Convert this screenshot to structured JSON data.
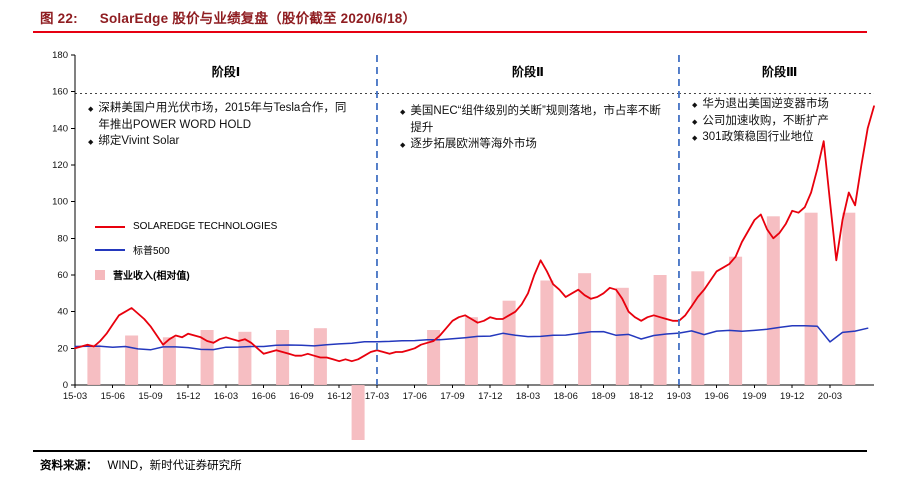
{
  "header": {
    "figure_label": "图 22:",
    "title": "SolarEdge 股价与业绩复盘（股价截至 2020/6/18）"
  },
  "footer": {
    "source_label": "资料来源：",
    "source_text": "WIND，新时代证券研究所"
  },
  "colors": {
    "title_red": "#8f1d21",
    "rule_red": "#e60012",
    "solaredge_red": "#e8000d",
    "sp500_blue": "#2438bd",
    "revenue_pink": "#f5b9bd",
    "divider_blue": "#4472c4"
  },
  "legend": {
    "items": [
      {
        "label": "SOLAREDGE TECHNOLOGIES",
        "type": "line"
      },
      {
        "label": "标普500",
        "type": "line"
      },
      {
        "label": "营业收入(相对值)",
        "type": "bar"
      }
    ]
  },
  "phases": [
    {
      "label": "阶段Ⅰ",
      "bullets": [
        "深耕美国户用光伏市场，2015年与Tesla合作，同年推出POWER WORD HOLD",
        "绑定Vivint Solar"
      ]
    },
    {
      "label": "阶段Ⅱ",
      "bullets": [
        "美国NEC“组件级别的关断”规则落地，市占率不断提升",
        "逐步拓展欧洲等海外市场"
      ]
    },
    {
      "label": "阶段Ⅲ",
      "bullets": [
        "华为退出美国逆变器市场",
        "公司加速收购，不断扩产",
        "301政策稳固行业地位"
      ]
    }
  ],
  "chart_data": {
    "type": "line+bar",
    "title": "SolarEdge 股价与业绩复盘",
    "ylim": [
      0,
      180
    ],
    "yticks": [
      0,
      20,
      40,
      60,
      80,
      100,
      120,
      140,
      160,
      180
    ],
    "x_categories": [
      "15-03",
      "15-06",
      "15-09",
      "15-12",
      "16-03",
      "16-06",
      "16-09",
      "16-12",
      "17-03",
      "17-06",
      "17-09",
      "17-12",
      "18-03",
      "18-06",
      "18-09",
      "18-12",
      "19-03",
      "19-06",
      "19-09",
      "19-12",
      "20-03"
    ],
    "x_axis_note": "months indexed from 2015-03 (0) to 2020-06 (63.5)",
    "phase_dividers": [
      {
        "at": "17-03",
        "month": 24
      },
      {
        "at": "19-03",
        "month": 48
      }
    ],
    "phase_labels": [
      {
        "label": "阶段Ⅰ",
        "month": 12
      },
      {
        "label": "阶段Ⅱ",
        "month": 36
      },
      {
        "label": "阶段Ⅲ",
        "month": 56
      }
    ],
    "separator_value": 159,
    "separator_segments": [
      [
        0,
        24
      ],
      [
        24,
        48
      ],
      [
        48,
        63.5
      ]
    ],
    "series": [
      {
        "name": "SOLAREDGE TECHNOLOGIES",
        "type": "line",
        "color": "#e8000d",
        "width": 1.8,
        "x_start": 0,
        "x_step": 0.5,
        "values": [
          20,
          21,
          22,
          21,
          24,
          28,
          33,
          38,
          40,
          42,
          39,
          36,
          32,
          27,
          22,
          25,
          27,
          26,
          28,
          27,
          26,
          24,
          23,
          25,
          26,
          25,
          24,
          25,
          23,
          20,
          17,
          18,
          19,
          18,
          17,
          16,
          16,
          17,
          16,
          15,
          15,
          14,
          13,
          14,
          13,
          14,
          16,
          18,
          19,
          18,
          17,
          18,
          18,
          19,
          20,
          22,
          23,
          24,
          27,
          31,
          35,
          37,
          38,
          36,
          34,
          35,
          37,
          36,
          36,
          38,
          40,
          44,
          50,
          60,
          68,
          62,
          55,
          52,
          48,
          50,
          52,
          49,
          47,
          48,
          50,
          53,
          52,
          47,
          40,
          37,
          35,
          37,
          38,
          37,
          36,
          35,
          35,
          38,
          43,
          48,
          52,
          57,
          62,
          64,
          66,
          70,
          78,
          84,
          90,
          93,
          85,
          80,
          83,
          88,
          95,
          94,
          97,
          105,
          118,
          133,
          100,
          68,
          90,
          105,
          98,
          120,
          140,
          152
        ]
      },
      {
        "name": "标普500",
        "type": "line",
        "color": "#2438bd",
        "width": 1.5,
        "x_start": 0,
        "x_step": 1,
        "values": [
          21.0,
          21.1,
          21.1,
          20.6,
          21.0,
          19.7,
          19.2,
          20.8,
          20.8,
          20.4,
          19.4,
          19.3,
          20.6,
          20.7,
          21.0,
          21.0,
          21.7,
          21.8,
          21.7,
          21.3,
          22.0,
          22.4,
          22.8,
          23.6,
          23.6,
          23.8,
          24.1,
          24.2,
          24.7,
          24.7,
          25.2,
          25.8,
          26.5,
          26.7,
          28.2,
          27.1,
          26.4,
          26.5,
          27.1,
          27.2,
          28.1,
          29.0,
          29.1,
          27.1,
          27.6,
          25.1,
          27.0,
          27.8,
          28.3,
          29.5,
          27.5,
          29.4,
          29.8,
          29.3,
          29.8,
          30.4,
          31.4,
          32.3,
          32.3,
          32.0,
          23.5,
          28.7,
          29.4,
          31.0
        ]
      },
      {
        "name": "营业收入(相对值)",
        "type": "bar",
        "color": "#f5b9bd",
        "x_offset_months": 1.5,
        "values": [
          22,
          27,
          26,
          30,
          29,
          30,
          31,
          -30,
          null,
          30,
          37,
          46,
          57,
          61,
          53,
          60,
          62,
          70,
          92,
          94,
          94
        ]
      }
    ]
  }
}
